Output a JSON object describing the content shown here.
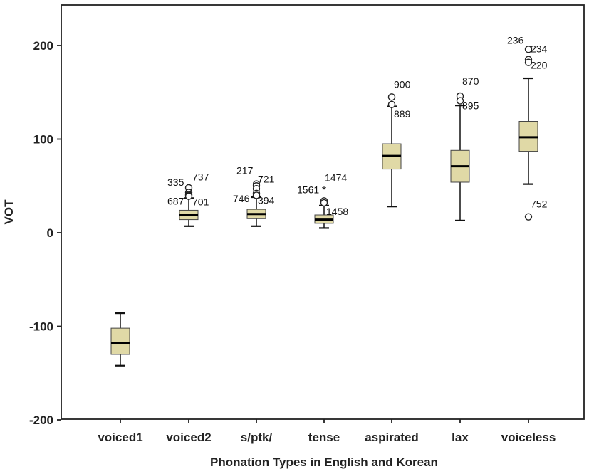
{
  "chart_data": {
    "type": "box",
    "xlabel": "Phonation Types in English and Korean",
    "ylabel": "VOT",
    "ylim": [
      -200,
      250
    ],
    "yticks": [
      -200,
      -100,
      0,
      100,
      200
    ],
    "grid": false,
    "legend": "none",
    "box_color": "#e0d9a6",
    "categories": [
      "voiced1",
      "voiced2",
      "s/ptk/",
      "tense",
      "aspirated",
      "lax",
      "voiceless"
    ],
    "boxes": [
      {
        "category": "voiced1",
        "whisker_low": -142,
        "q1": -130,
        "median": -118,
        "q3": -102,
        "whisker_high": -86
      },
      {
        "category": "voiced2",
        "whisker_low": 7,
        "q1": 14,
        "median": 19,
        "q3": 24,
        "whisker_high": 37
      },
      {
        "category": "s/ptk/",
        "whisker_low": 7,
        "q1": 15,
        "median": 20,
        "q3": 25,
        "whisker_high": 38
      },
      {
        "category": "tense",
        "whisker_low": 5,
        "q1": 10,
        "median": 14,
        "q3": 19,
        "whisker_high": 29
      },
      {
        "category": "aspirated",
        "whisker_low": 28,
        "q1": 68,
        "median": 82,
        "q3": 95,
        "whisker_high": 135
      },
      {
        "category": "lax",
        "whisker_low": 13,
        "q1": 54,
        "median": 71,
        "q3": 88,
        "whisker_high": 136
      },
      {
        "category": "voiceless",
        "whisker_low": 52,
        "q1": 87,
        "median": 102,
        "q3": 119,
        "whisker_high": 165
      }
    ],
    "outliers": [
      {
        "category": "voiced2",
        "value": 48,
        "marker": "circle",
        "label": "335"
      },
      {
        "category": "voiced2",
        "value": 43,
        "marker": "circle",
        "label": "737"
      },
      {
        "category": "voiced2",
        "value": 41,
        "marker": "circle",
        "label": ""
      },
      {
        "category": "voiced2",
        "value": 40,
        "marker": "circle",
        "label": "687"
      },
      {
        "category": "voiced2",
        "value": 39,
        "marker": "circle",
        "label": "701"
      },
      {
        "category": "s/ptk/",
        "value": 52,
        "marker": "circle",
        "label": "217"
      },
      {
        "category": "s/ptk/",
        "value": 50,
        "marker": "circle",
        "label": "721"
      },
      {
        "category": "s/ptk/",
        "value": 47,
        "marker": "circle",
        "label": ""
      },
      {
        "category": "s/ptk/",
        "value": 42,
        "marker": "circle",
        "label": "746"
      },
      {
        "category": "s/ptk/",
        "value": 40,
        "marker": "circle",
        "label": "394"
      },
      {
        "category": "tense",
        "value": 46,
        "marker": "star",
        "label": "1561"
      },
      {
        "category": "tense",
        "value": 34,
        "marker": "circle",
        "label": "1474"
      },
      {
        "category": "tense",
        "value": 32,
        "marker": "circle",
        "label": "1458"
      },
      {
        "category": "aspirated",
        "value": 145,
        "marker": "circle",
        "label": "900"
      },
      {
        "category": "aspirated",
        "value": 137,
        "marker": "circle",
        "label": "889"
      },
      {
        "category": "lax",
        "value": 146,
        "marker": "circle",
        "label": "870"
      },
      {
        "category": "lax",
        "value": 141,
        "marker": "circle",
        "label": "895"
      },
      {
        "category": "voiceless",
        "value": 196,
        "marker": "circle",
        "label": "236"
      },
      {
        "category": "voiceless",
        "value": 185,
        "marker": "circle",
        "label": "234"
      },
      {
        "category": "voiceless",
        "value": 182,
        "marker": "circle",
        "label": "220"
      },
      {
        "category": "voiceless",
        "value": 17,
        "marker": "circle",
        "label": "752"
      }
    ]
  }
}
